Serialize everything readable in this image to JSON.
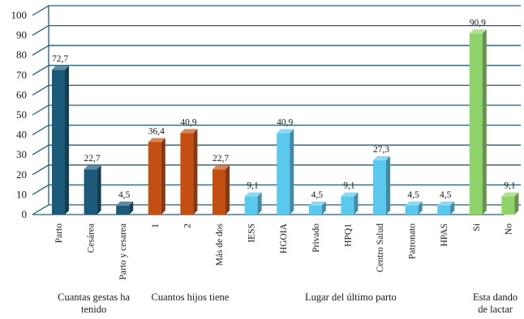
{
  "chart_data": {
    "type": "bar",
    "title": "",
    "xlabel": "",
    "ylabel": "",
    "ylim": [
      0,
      100
    ],
    "yticks": [
      "0",
      "10",
      "20",
      "30",
      "40",
      "50",
      "60",
      "70",
      "80",
      "90",
      "100"
    ],
    "grid": true,
    "legend": "none",
    "categories": [
      "Parto",
      "Cesárea",
      "Parto y cesarea",
      "1",
      "2",
      "Más de dos",
      "IESS",
      "HGOIA",
      "Privado",
      "HPQ1",
      "Centro Salud",
      "Patronato",
      "HPAS",
      "Si",
      "No"
    ],
    "values": [
      72.7,
      22.7,
      4.5,
      36.4,
      40.9,
      22.7,
      9.1,
      40.9,
      4.5,
      9.1,
      27.3,
      4.5,
      4.5,
      90.9,
      9.1
    ],
    "value_labels": [
      "72,7",
      "22,7",
      "4,5",
      "36,4",
      "40,9",
      "22,7",
      "9,1",
      "40,9",
      "4,5",
      "9,1",
      "27,3",
      "4,5",
      "4,5",
      "90,9",
      "9,1"
    ],
    "groups": [
      {
        "label_lines": [
          "Cuantas gestas ha",
          "tenido"
        ],
        "start": 0,
        "count": 3,
        "color": "#1b5a78"
      },
      {
        "label_lines": [
          "Cuantos hijos tiene"
        ],
        "start": 3,
        "count": 3,
        "color": "#c44f12"
      },
      {
        "label_lines": [
          "Lugar del último parto"
        ],
        "start": 6,
        "count": 7,
        "color": "#5bc8ee"
      },
      {
        "label_lines": [
          "Esta dando",
          "de lactar"
        ],
        "start": 13,
        "count": 2,
        "color": "#8fd46a"
      }
    ]
  }
}
